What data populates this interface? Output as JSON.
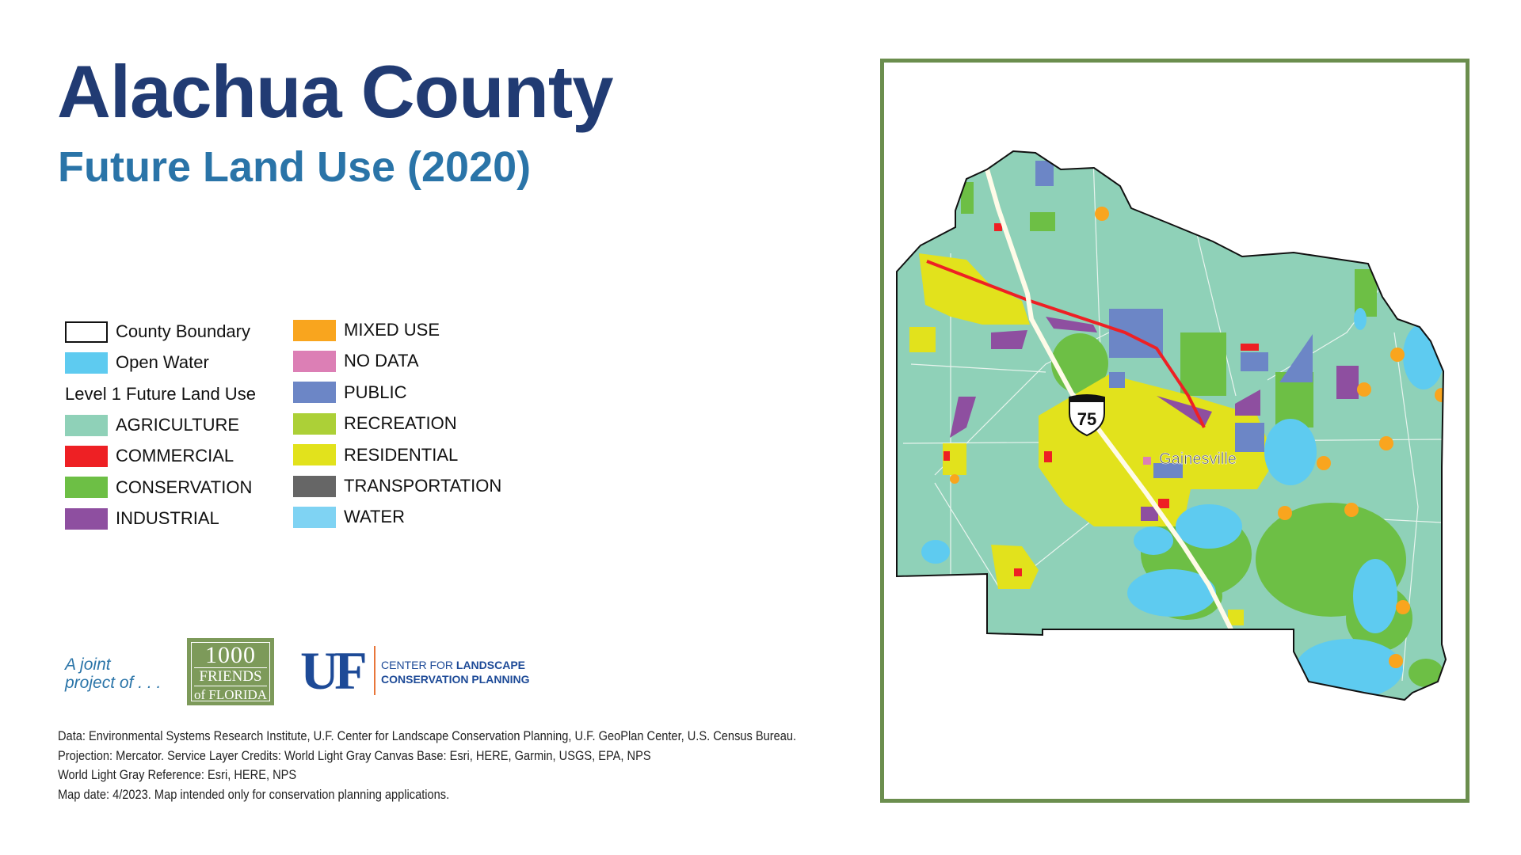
{
  "header": {
    "title": "Alachua County",
    "subtitle": "Future Land Use (2020)"
  },
  "legend": {
    "county_boundary": "County Boundary",
    "open_water": {
      "label": "Open Water",
      "color": "#5ecbf0"
    },
    "section_title": "Level 1 Future Land Use",
    "items_left": [
      {
        "label": "AGRICULTURE",
        "color": "#8fd1b8"
      },
      {
        "label": "COMMERCIAL",
        "color": "#ee2024"
      },
      {
        "label": "CONSERVATION",
        "color": "#6dbf45"
      },
      {
        "label": "INDUSTRIAL",
        "color": "#8e4fa0"
      }
    ],
    "items_right": [
      {
        "label": "MIXED USE",
        "color": "#f9a51e"
      },
      {
        "label": "NO DATA",
        "color": "#dc7fb5"
      },
      {
        "label": "PUBLIC",
        "color": "#6c86c6"
      },
      {
        "label": "RECREATION",
        "color": "#acd037"
      },
      {
        "label": "RESIDENTIAL",
        "color": "#e2e21c"
      },
      {
        "label": "TRANSPORTATION",
        "color": "#666666"
      },
      {
        "label": "WATER",
        "color": "#7fd3f3"
      }
    ]
  },
  "logos": {
    "joint_line1": "A joint",
    "joint_line2": "project of . . .",
    "friends_line1": "1000",
    "friends_line2": "FRIENDS",
    "friends_line3": "of FLORIDA",
    "uf": "UF",
    "center_line1_normal": "CENTER FOR ",
    "center_line1_bold": "LANDSCAPE",
    "center_line2": "CONSERVATION PLANNING"
  },
  "footnote": [
    "Data: Environmental Systems Research Institute, U.F. Center for Landscape Conservation Planning, U.F. GeoPlan Center, U.S. Census Bureau.",
    "Projection: Mercator. Service Layer Credits: World Light Gray Canvas Base: Esri, HERE, Garmin, USGS, EPA, NPS",
    "World Light Gray Reference: Esri, HERE, NPS",
    "Map date: 4/2023. Map intended only for conservation planning applications."
  ],
  "map": {
    "highway_shield": "75",
    "city_label": "Gainesville",
    "frame_color": "#6b8e4e"
  }
}
